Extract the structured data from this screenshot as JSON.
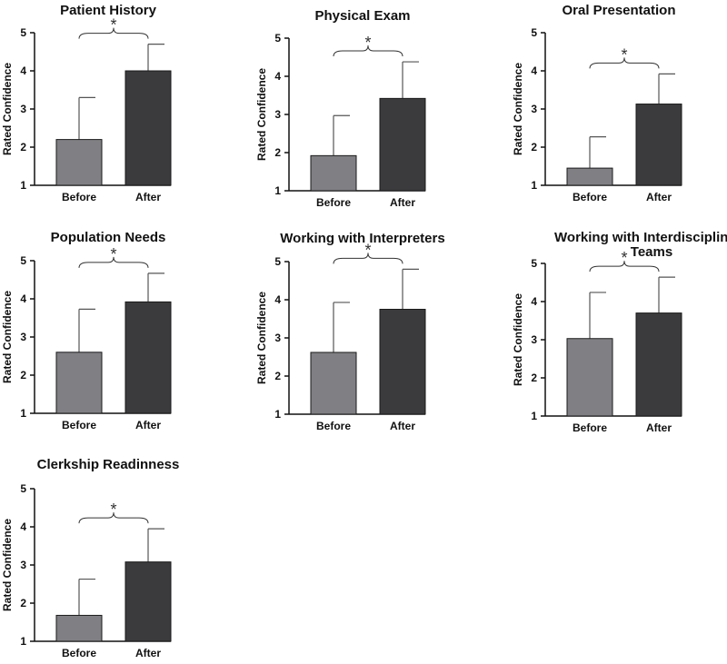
{
  "chart_data": [
    {
      "type": "bar",
      "title": "Patient History",
      "ylabel": "Rated Confidence",
      "ylim": [
        1,
        5
      ],
      "yticks": [
        1,
        2,
        3,
        4,
        5
      ],
      "categories": [
        "Before",
        "After"
      ],
      "values": [
        2.2,
        4.0
      ],
      "error_upper": [
        3.3,
        4.7
      ],
      "colors": [
        "#808084",
        "#3b3b3d"
      ],
      "significance": "*"
    },
    {
      "type": "bar",
      "title": "Physical Exam",
      "ylabel": "Rated Confidence",
      "ylim": [
        1,
        5
      ],
      "yticks": [
        1,
        2,
        3,
        4,
        5
      ],
      "categories": [
        "Before",
        "After"
      ],
      "values": [
        1.92,
        3.42
      ],
      "error_upper": [
        2.97,
        4.38
      ],
      "colors": [
        "#808084",
        "#3b3b3d"
      ],
      "significance": "*"
    },
    {
      "type": "bar",
      "title": "Oral Presentation",
      "ylabel": "Rated Confidence",
      "ylim": [
        1,
        5
      ],
      "yticks": [
        1,
        2,
        3,
        4,
        5
      ],
      "categories": [
        "Before",
        "After"
      ],
      "values": [
        1.45,
        3.13
      ],
      "error_upper": [
        2.27,
        3.92
      ],
      "colors": [
        "#808084",
        "#3b3b3d"
      ],
      "significance": "*"
    },
    {
      "type": "bar",
      "title": "Population Needs",
      "ylabel": "Rated Confidence",
      "ylim": [
        1,
        5
      ],
      "yticks": [
        1,
        2,
        3,
        4,
        5
      ],
      "categories": [
        "Before",
        "After"
      ],
      "values": [
        2.6,
        3.92
      ],
      "error_upper": [
        3.73,
        4.67
      ],
      "colors": [
        "#808084",
        "#3b3b3d"
      ],
      "significance": "*"
    },
    {
      "type": "bar",
      "title": "Working with Interpreters",
      "ylabel": "Rated Confidence",
      "ylim": [
        1,
        5
      ],
      "yticks": [
        1,
        2,
        3,
        4,
        5
      ],
      "categories": [
        "Before",
        "After"
      ],
      "values": [
        2.62,
        3.75
      ],
      "error_upper": [
        3.93,
        4.8
      ],
      "colors": [
        "#808084",
        "#3b3b3d"
      ],
      "significance": "*"
    },
    {
      "type": "bar",
      "title": "Working with Interdisciplinary Teams",
      "ylabel": "Rated Confidence",
      "ylim": [
        1,
        5
      ],
      "yticks": [
        1,
        2,
        3,
        4,
        5
      ],
      "categories": [
        "Before",
        "After"
      ],
      "values": [
        3.03,
        3.7
      ],
      "error_upper": [
        4.24,
        4.64
      ],
      "colors": [
        "#808084",
        "#3b3b3d"
      ],
      "significance": "*"
    },
    {
      "type": "bar",
      "title": "Clerkship Readinness",
      "ylabel": "Rated Confidence",
      "ylim": [
        1,
        5
      ],
      "yticks": [
        1,
        2,
        3,
        4,
        5
      ],
      "categories": [
        "Before",
        "After"
      ],
      "values": [
        1.68,
        3.08
      ],
      "error_upper": [
        2.63,
        3.95
      ],
      "colors": [
        "#808084",
        "#3b3b3d"
      ],
      "significance": "*"
    }
  ]
}
